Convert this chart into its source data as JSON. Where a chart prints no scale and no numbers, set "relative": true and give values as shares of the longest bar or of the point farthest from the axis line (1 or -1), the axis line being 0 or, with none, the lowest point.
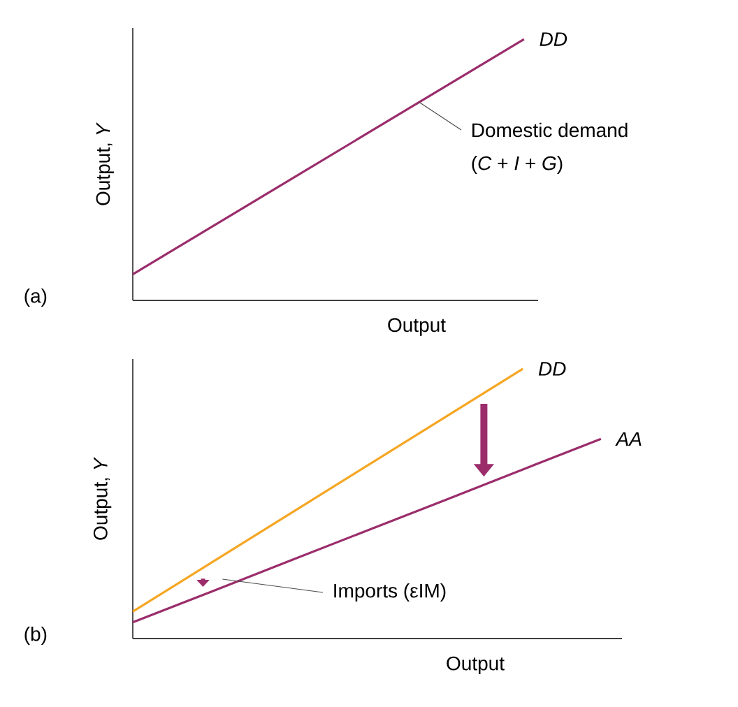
{
  "chart_data": [
    {
      "type": "line",
      "relative": true,
      "categories": [
        null,
        null
      ],
      "xlabel": "Output",
      "ylabel": "Output, *Y*",
      "series": [
        {
          "name": "DD",
          "color": "#9B2D6B",
          "values": [
            0.1,
            1.0
          ]
        }
      ],
      "annotations": [
        "(a)",
        "Domestic demand",
        "(*C* + *I* + *G*)"
      ]
    },
    {
      "type": "line",
      "relative": true,
      "categories": [
        null,
        null,
        null,
        null,
        null,
        null,
        null
      ],
      "xlabel": "Output",
      "ylabel": "Output, *Y*",
      "series": [
        {
          "name": "DD",
          "color": "#F5A623",
          "values": [
            0.1,
            0.28,
            0.46,
            0.64,
            0.82,
            1.0,
            null
          ]
        },
        {
          "name": "AA",
          "color": "#9B2D6B",
          "values": [
            0.06,
            0.173,
            0.287,
            0.4,
            0.513,
            0.627,
            0.74
          ]
        }
      ],
      "annotations": [
        "(b)",
        "Imports (εIM)"
      ]
    }
  ]
}
